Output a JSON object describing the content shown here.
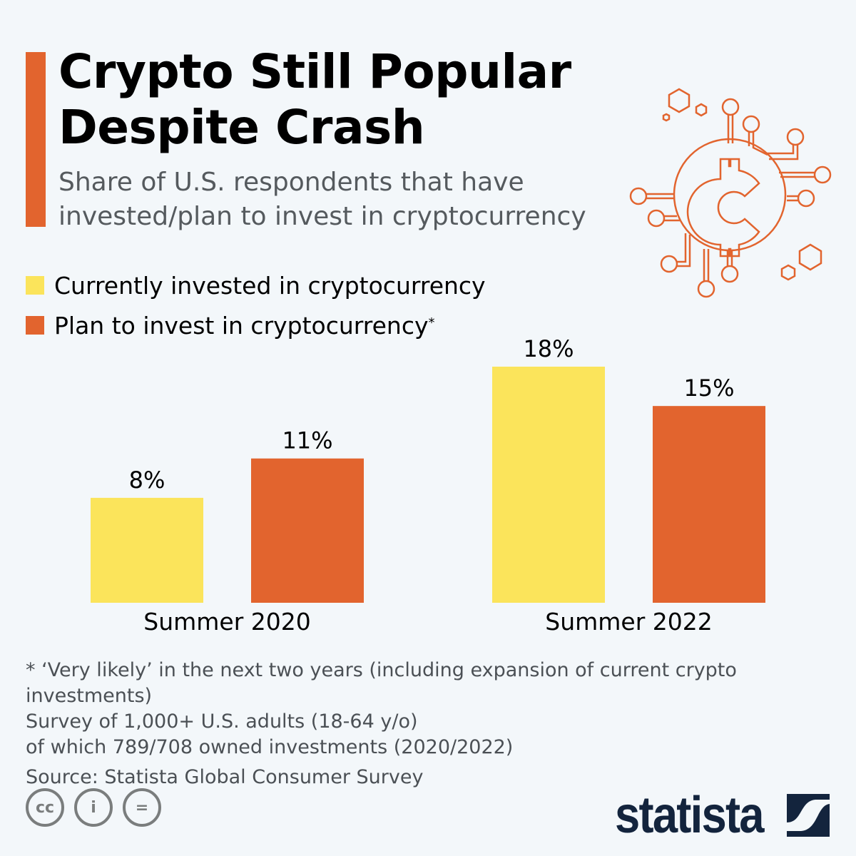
{
  "header": {
    "title_line1": "Crypto Still Popular",
    "title_line2": "Despite Crash",
    "subtitle_line1": "Share of U.S. respondents that have",
    "subtitle_line2": "invested/plan to invest in cryptocurrency"
  },
  "icon": "crypto-coin-circuit-icon",
  "chart_data": {
    "type": "bar",
    "categories": [
      "Summer 2020",
      "Summer 2022"
    ],
    "series": [
      {
        "name": "Currently invested in cryptocurrency",
        "values": [
          8,
          18
        ],
        "labels": [
          "8%",
          "18%"
        ],
        "color": "#FBE45B"
      },
      {
        "name": "Plan to invest in cryptocurrency",
        "name_suffix": "*",
        "values": [
          11,
          15
        ],
        "labels": [
          "11%",
          "15%"
        ],
        "color": "#E2642E"
      }
    ],
    "unit": "%",
    "ylim": [
      0,
      18
    ],
    "grid": false,
    "legend": "top-left"
  },
  "notes": {
    "line1": "* ‘Very likely’ in the next two years (including expansion of current crypto investments)",
    "line2": "Survey of 1,000+ U.S. adults (18-64 y/o)",
    "line3": "of which 789/708 owned investments (2020/2022)",
    "source": "Source: Statista Global Consumer Survey"
  },
  "footer": {
    "cc_icons": [
      "cc",
      "by",
      "nd"
    ],
    "cc_labels": [
      "cc",
      "i",
      "="
    ],
    "logo": "statista"
  }
}
